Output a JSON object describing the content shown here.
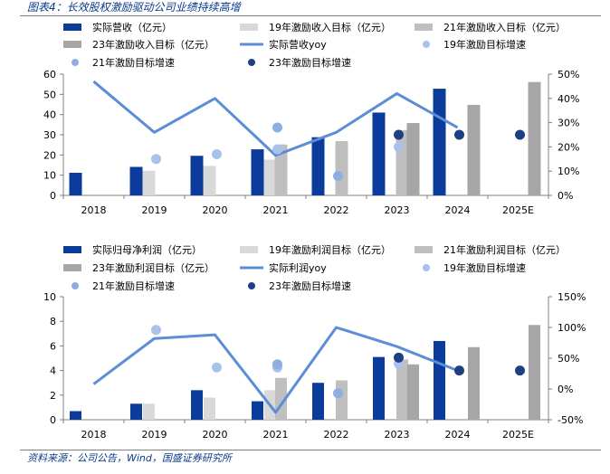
{
  "title": "图表4：长效股权激励驱动公司业绩持续高增",
  "source": "资料来源：公司公告，Wind，国盛证券研究所",
  "colors": {
    "dark_blue": "#0b3c9c",
    "line_blue": "#5b8ed4",
    "light_gray": "#d9d9d9",
    "mid_gray": "#bfbfbf",
    "gray": "#a6a6a6",
    "dot_light": "#a9c2ea",
    "dot_mid": "#8eaee2",
    "dot_dark": "#1f3f85",
    "axis": "#808080",
    "text": "#000000"
  },
  "chart_data": [
    {
      "type": "bar",
      "categories": [
        "2018",
        "2019",
        "2020",
        "2021",
        "2022",
        "2023",
        "2024",
        "2025E"
      ],
      "ylim": [
        0,
        60
      ],
      "yticks": [
        0,
        10,
        20,
        30,
        40,
        50,
        60
      ],
      "y2lim": [
        0,
        50
      ],
      "y2ticks": [
        "0%",
        "10%",
        "20%",
        "30%",
        "40%",
        "50%"
      ],
      "y2tick_values": [
        0,
        10,
        20,
        30,
        40,
        50
      ],
      "legend": [
        {
          "name": "实际营收（亿元）",
          "marker": "bar",
          "color": "#0b3c9c"
        },
        {
          "name": "19年激励收入目标（亿元）",
          "marker": "bar",
          "color": "#d9d9d9"
        },
        {
          "name": "21年激励收入目标（亿元）",
          "marker": "bar",
          "color": "#bfbfbf"
        },
        {
          "name": "23年激励收入目标（亿元）",
          "marker": "bar",
          "color": "#a6a6a6"
        },
        {
          "name": "实际营收yoy",
          "marker": "line",
          "color": "#5b8ed4"
        },
        {
          "name": "19年激励目标增速",
          "marker": "dot",
          "color": "#a9c2ea"
        },
        {
          "name": "21年激励目标增速",
          "marker": "dot",
          "color": "#8eaee2"
        },
        {
          "name": "23年激励目标增速",
          "marker": "dot",
          "color": "#1f3f85"
        }
      ],
      "bar_series": [
        {
          "name": "实际营收（亿元）",
          "color": "#0b3c9c",
          "values": [
            11.2,
            14.1,
            19.6,
            22.8,
            28.8,
            41.0,
            52.8,
            null
          ]
        },
        {
          "name": "19年激励收入目标（亿元）",
          "color": "#d9d9d9",
          "values": [
            null,
            12.2,
            14.6,
            17.7,
            null,
            null,
            null,
            null
          ]
        },
        {
          "name": "21年激励收入目标（亿元）",
          "color": "#bfbfbf",
          "values": [
            null,
            null,
            null,
            25.2,
            26.9,
            32.3,
            null,
            null
          ]
        },
        {
          "name": "23年激励收入目标（亿元）",
          "color": "#a6a6a6",
          "values": [
            null,
            null,
            null,
            null,
            null,
            35.8,
            44.8,
            56.1
          ]
        }
      ],
      "line_series": {
        "name": "实际营收yoy",
        "color": "#5b8ed4",
        "values": [
          47,
          26,
          40,
          16.5,
          26,
          42,
          28,
          null
        ]
      },
      "dot_series": [
        {
          "name": "19年激励目标增速",
          "color": "#a9c2ea",
          "values": [
            null,
            15,
            17,
            19,
            null,
            20,
            null,
            null
          ]
        },
        {
          "name": "21年激励目标增速",
          "color": "#8eaee2",
          "values": [
            null,
            null,
            null,
            28,
            8,
            null,
            null,
            null
          ]
        },
        {
          "name": "23年激励目标增速",
          "color": "#1f3f85",
          "values": [
            null,
            null,
            null,
            null,
            null,
            25,
            25,
            25
          ]
        }
      ]
    },
    {
      "type": "bar",
      "categories": [
        "2018",
        "2019",
        "2020",
        "2021",
        "2022",
        "2023",
        "2024",
        "2025E"
      ],
      "ylim": [
        0,
        10
      ],
      "yticks": [
        0,
        2,
        4,
        6,
        8,
        10
      ],
      "y2lim": [
        -50,
        150
      ],
      "y2ticks": [
        "-50%",
        "0%",
        "50%",
        "100%",
        "150%"
      ],
      "y2tick_values": [
        -50,
        0,
        50,
        100,
        150
      ],
      "legend": [
        {
          "name": "实际归母净利润（亿元）",
          "marker": "bar",
          "color": "#0b3c9c"
        },
        {
          "name": "19年激励利润目标（亿元）",
          "marker": "bar",
          "color": "#d9d9d9"
        },
        {
          "name": "21年激励利润目标（亿元）",
          "marker": "bar",
          "color": "#bfbfbf"
        },
        {
          "name": "23年激励利润目标（亿元）",
          "marker": "bar",
          "color": "#a6a6a6"
        },
        {
          "name": "实际利润yoy",
          "marker": "line",
          "color": "#5b8ed4"
        },
        {
          "name": "19年激励目标增速",
          "marker": "dot",
          "color": "#a9c2ea"
        },
        {
          "name": "21年激励目标增速",
          "marker": "dot",
          "color": "#8eaee2"
        },
        {
          "name": "23年激励目标增速",
          "marker": "dot",
          "color": "#1f3f85"
        }
      ],
      "bar_series": [
        {
          "name": "实际归母净利润（亿元）",
          "color": "#0b3c9c",
          "values": [
            0.7,
            1.3,
            2.4,
            1.5,
            3.0,
            5.1,
            6.4,
            null
          ]
        },
        {
          "name": "19年激励利润目标（亿元）",
          "color": "#d9d9d9",
          "values": [
            null,
            1.3,
            1.8,
            2.4,
            null,
            null,
            null,
            null
          ]
        },
        {
          "name": "21年激励利润目标（亿元）",
          "color": "#bfbfbf",
          "values": [
            null,
            null,
            null,
            3.4,
            3.2,
            4.9,
            null,
            null
          ]
        },
        {
          "name": "23年激励利润目标（亿元）",
          "color": "#a6a6a6",
          "values": [
            null,
            null,
            null,
            null,
            null,
            4.5,
            5.9,
            7.7
          ]
        }
      ],
      "line_series": {
        "name": "实际利润yoy",
        "color": "#5b8ed4",
        "values": [
          8,
          82,
          88,
          -38,
          100,
          69,
          30,
          null
        ]
      },
      "dot_series": [
        {
          "name": "19年激励目标增速",
          "color": "#a9c2ea",
          "values": [
            null,
            96,
            35,
            35,
            null,
            41,
            null,
            null
          ]
        },
        {
          "name": "21年激励目标增速",
          "color": "#8eaee2",
          "values": [
            null,
            null,
            null,
            40,
            -7,
            null,
            null,
            null
          ]
        },
        {
          "name": "23年激励目标增速",
          "color": "#1f3f85",
          "values": [
            null,
            null,
            null,
            null,
            null,
            51,
            30,
            30
          ]
        }
      ]
    }
  ]
}
